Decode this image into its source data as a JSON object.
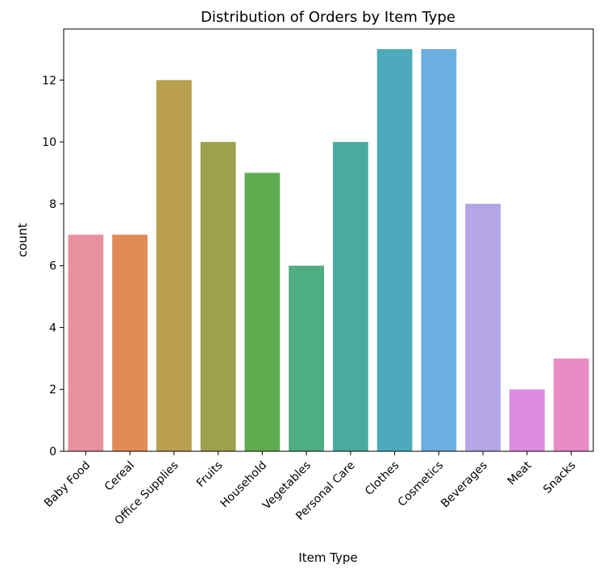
{
  "chart_data": {
    "type": "bar",
    "title": "Distribution of Orders by Item Type",
    "xlabel": "Item Type",
    "ylabel": "count",
    "categories": [
      "Baby Food",
      "Cereal",
      "Office Supplies",
      "Fruits",
      "Household",
      "Vegetables",
      "Personal Care",
      "Clothes",
      "Cosmetics",
      "Beverages",
      "Meat",
      "Snacks"
    ],
    "values": [
      7,
      7,
      12,
      10,
      9,
      6,
      10,
      13,
      13,
      8,
      2,
      3
    ],
    "colors": [
      "#E8919D",
      "#E28B56",
      "#B99F4E",
      "#9DA04D",
      "#5FAD51",
      "#4EAE82",
      "#4BABA0",
      "#4DAABC",
      "#6AAEE2",
      "#B4A5E7",
      "#DD8CE4",
      "#E88DC4"
    ],
    "ylim": [
      0,
      13.65
    ],
    "yticks": [
      0,
      2,
      4,
      6,
      8,
      10,
      12
    ],
    "grid": false,
    "legend": "none"
  }
}
